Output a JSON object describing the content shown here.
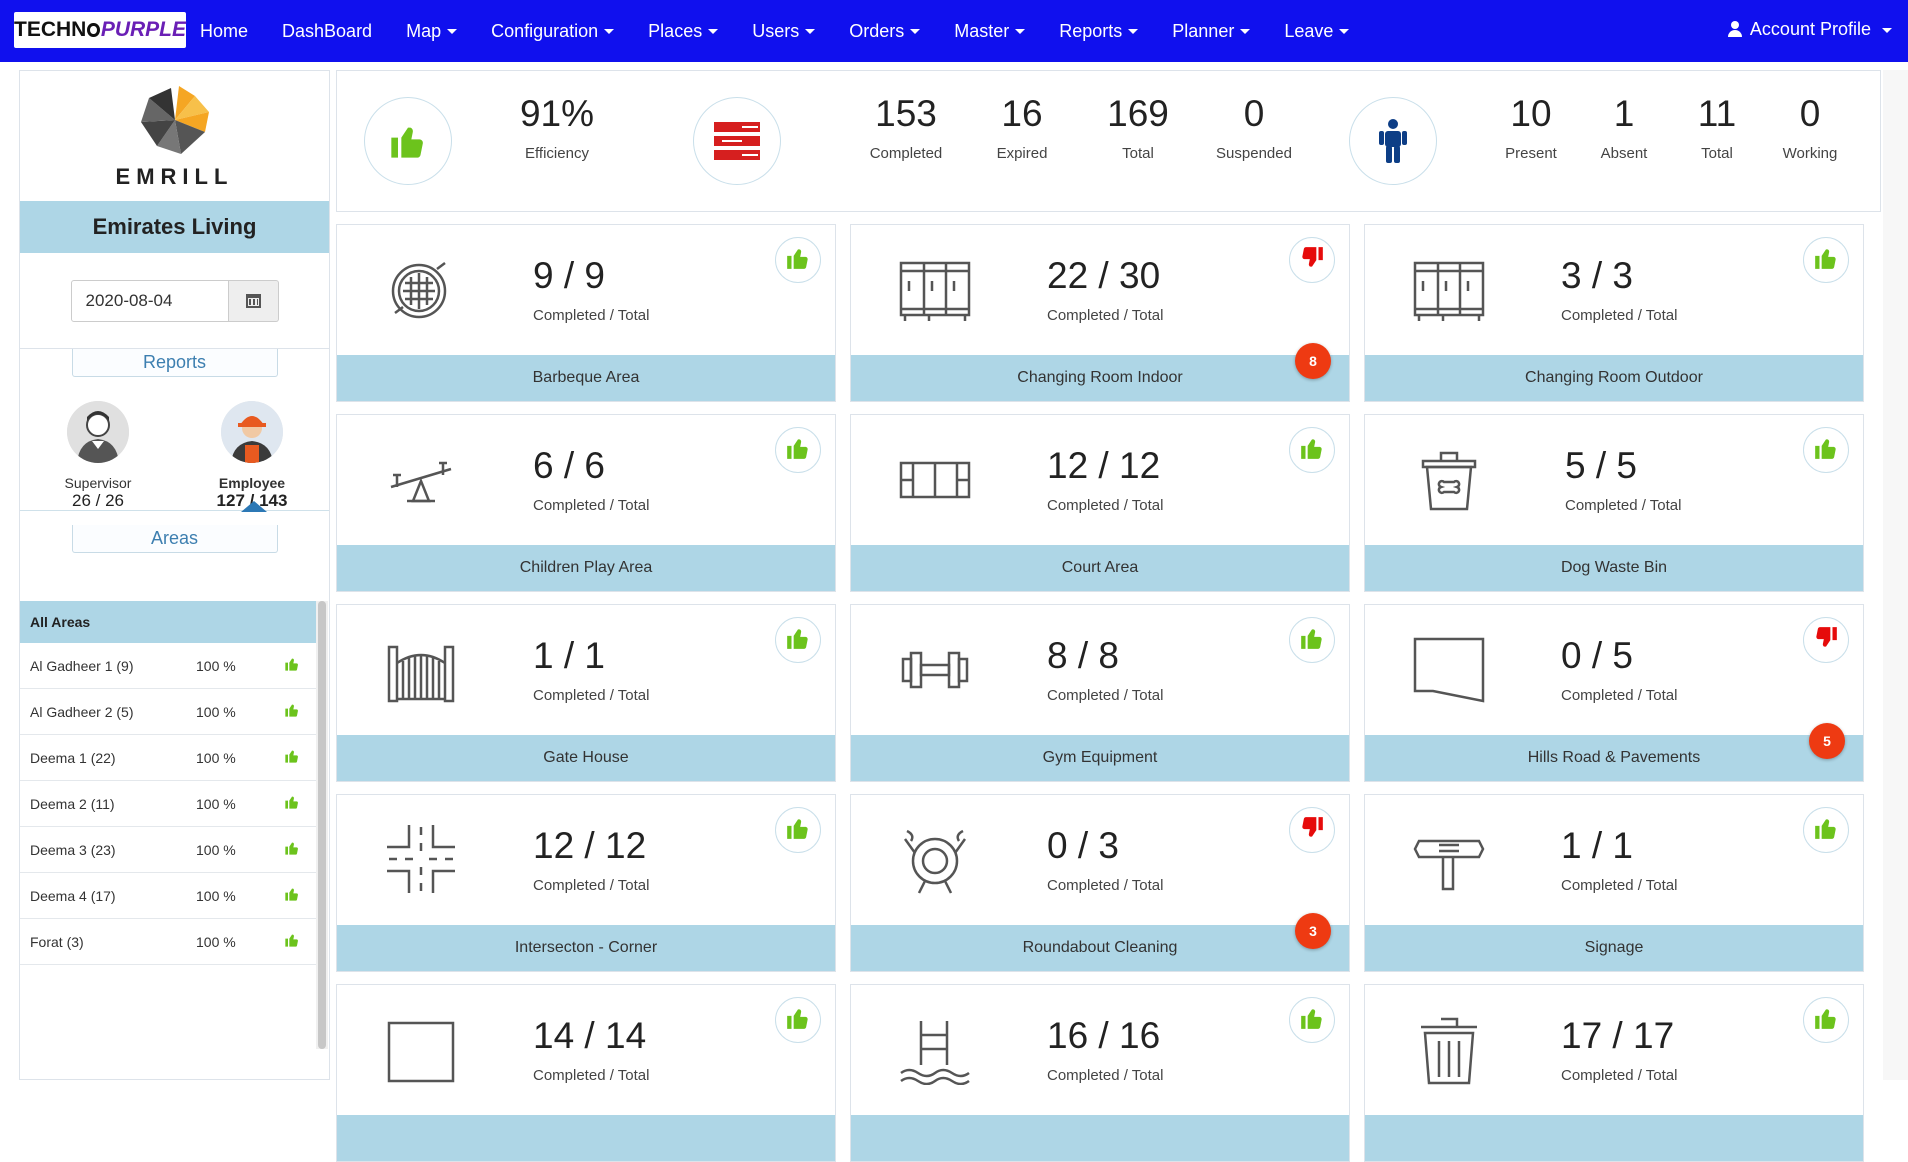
{
  "navbar": {
    "logo_part1": "TECHN",
    "logo_part2": "PURPLE",
    "items": [
      {
        "label": "Home",
        "dropdown": false
      },
      {
        "label": "DashBoard",
        "dropdown": false
      },
      {
        "label": "Map",
        "dropdown": true
      },
      {
        "label": "Configuration",
        "dropdown": true
      },
      {
        "label": "Places",
        "dropdown": true
      },
      {
        "label": "Users",
        "dropdown": true
      },
      {
        "label": "Orders",
        "dropdown": true
      },
      {
        "label": "Master",
        "dropdown": true
      },
      {
        "label": "Reports",
        "dropdown": true
      },
      {
        "label": "Planner",
        "dropdown": true
      },
      {
        "label": "Leave",
        "dropdown": true
      }
    ],
    "account_label": "Account Profile",
    "bg_color": "#1010ee"
  },
  "sidebar": {
    "brand_name": "EMRILL",
    "client_name": "Emirates Living",
    "date": "2020-08-04",
    "reports_label": "Reports",
    "supervisor": {
      "label": "Supervisor",
      "value": "26 / 26"
    },
    "employee": {
      "label": "Employee",
      "value": "127 / 143"
    },
    "areas_label": "Areas",
    "areas_header": "All Areas",
    "areas": [
      {
        "name": "Al Gadheer 1 (9)",
        "percent": "100 %"
      },
      {
        "name": "Al Gadheer 2 (5)",
        "percent": "100 %"
      },
      {
        "name": "Deema 1 (22)",
        "percent": "100 %"
      },
      {
        "name": "Deema 2 (11)",
        "percent": "100 %"
      },
      {
        "name": "Deema 3 (23)",
        "percent": "100 %"
      },
      {
        "name": "Deema 4 (17)",
        "percent": "100 %"
      },
      {
        "name": "Forat (3)",
        "percent": "100 %"
      }
    ]
  },
  "stats": {
    "efficiency": {
      "value": "91%",
      "label": "Efficiency"
    },
    "completed": {
      "value": "153",
      "label": "Completed"
    },
    "expired": {
      "value": "16",
      "label": "Expired"
    },
    "total_tasks": {
      "value": "169",
      "label": "Total"
    },
    "suspended": {
      "value": "0",
      "label": "Suspended"
    },
    "present": {
      "value": "10",
      "label": "Present"
    },
    "absent": {
      "value": "1",
      "label": "Absent"
    },
    "total_staff": {
      "value": "11",
      "label": "Total"
    },
    "working": {
      "value": "0",
      "label": "Working"
    }
  },
  "cards_caption": "Completed / Total",
  "cards": [
    {
      "name": "Barbeque Area",
      "count": "9 / 9",
      "status": "good",
      "icon": "grill-icon",
      "badge": ""
    },
    {
      "name": "Changing Room Indoor",
      "count": "22 / 30",
      "status": "bad",
      "icon": "locker-icon",
      "badge": "8"
    },
    {
      "name": "Changing Room Outdoor",
      "count": "3 / 3",
      "status": "good",
      "icon": "locker-icon",
      "badge": ""
    },
    {
      "name": "Children Play Area",
      "count": "6 / 6",
      "status": "good",
      "icon": "seesaw-icon",
      "badge": ""
    },
    {
      "name": "Court Area",
      "count": "12 / 12",
      "status": "good",
      "icon": "court-icon",
      "badge": ""
    },
    {
      "name": "Dog Waste Bin",
      "count": "5 / 5",
      "status": "good",
      "icon": "dog-bin-icon",
      "badge": ""
    },
    {
      "name": "Gate House",
      "count": "1 / 1",
      "status": "good",
      "icon": "gate-icon",
      "badge": ""
    },
    {
      "name": "Gym Equipment",
      "count": "8 / 8",
      "status": "good",
      "icon": "dumbbell-icon",
      "badge": ""
    },
    {
      "name": "Hills Road & Pavements",
      "count": "0 / 5",
      "status": "bad",
      "icon": "road-shape-icon",
      "badge": "5"
    },
    {
      "name": "Intersecton - Corner",
      "count": "12 / 12",
      "status": "good",
      "icon": "intersection-icon",
      "badge": ""
    },
    {
      "name": "Roundabout Cleaning",
      "count": "0 / 3",
      "status": "bad",
      "icon": "roundabout-icon",
      "badge": "3"
    },
    {
      "name": "Signage",
      "count": "1 / 1",
      "status": "good",
      "icon": "signpost-icon",
      "badge": ""
    },
    {
      "name": "",
      "count": "14 / 14",
      "status": "good",
      "icon": "square-icon",
      "badge": ""
    },
    {
      "name": "",
      "count": "16 / 16",
      "status": "good",
      "icon": "pool-ladder-icon",
      "badge": ""
    },
    {
      "name": "",
      "count": "17 / 17",
      "status": "good",
      "icon": "trash-bin-icon",
      "badge": ""
    }
  ],
  "colors": {
    "good": "#6cc31c",
    "bad": "#e60b0b",
    "footer": "#aed6e6",
    "badge": "#ee3a12",
    "person_icon": "#0d3e86",
    "list_icon": "#d61f1f"
  }
}
